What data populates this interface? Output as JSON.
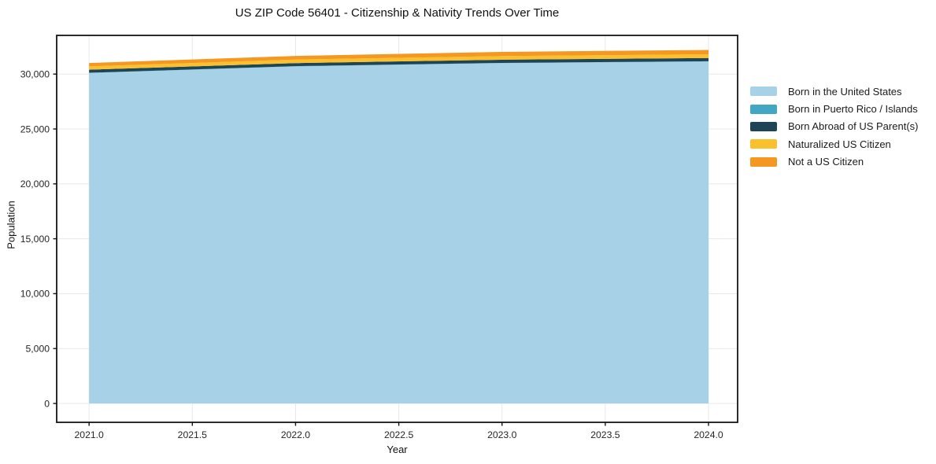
{
  "chart_data": {
    "type": "area",
    "stacked": true,
    "title": "US ZIP Code 56401 - Citizenship & Nativity Trends Over Time",
    "xlabel": "Year",
    "ylabel": "Population",
    "x": [
      2021,
      2022,
      2023,
      2024
    ],
    "series": [
      {
        "name": "Born in the United States",
        "color": "#a7d1e6",
        "values": [
          30100,
          30700,
          31000,
          31150
        ]
      },
      {
        "name": "Born in Puerto Rico / Islands",
        "color": "#41a7c2",
        "values": [
          20,
          20,
          20,
          20
        ]
      },
      {
        "name": "Born Abroad of US Parent(s)",
        "color": "#1e4557",
        "values": [
          280,
          280,
          290,
          290
        ]
      },
      {
        "name": "Naturalized US Citizen",
        "color": "#fbc02d",
        "values": [
          300,
          320,
          330,
          340
        ]
      },
      {
        "name": "Not a US Citizen",
        "color": "#f59821",
        "values": [
          310,
          330,
          380,
          400
        ]
      }
    ],
    "xticks": [
      2021.0,
      2021.5,
      2022.0,
      2022.5,
      2023.0,
      2023.5,
      2024.0
    ],
    "xtick_labels": [
      "2021.0",
      "2021.5",
      "2022.0",
      "2022.5",
      "2023.0",
      "2023.5",
      "2024.0"
    ],
    "yticks": [
      0,
      5000,
      10000,
      15000,
      20000,
      25000,
      30000
    ],
    "ytick_labels": [
      "0",
      "5,000",
      "10,000",
      "15,000",
      "20,000",
      "25,000",
      "30,000"
    ],
    "xlim": [
      2020.843,
      2024.141
    ],
    "ylim": [
      -1719,
      33524
    ],
    "grid": true,
    "legend_position": "right",
    "colors": {
      "grid": "#e8e8e8",
      "spine": "#141414",
      "tick_label": "#262626"
    }
  }
}
